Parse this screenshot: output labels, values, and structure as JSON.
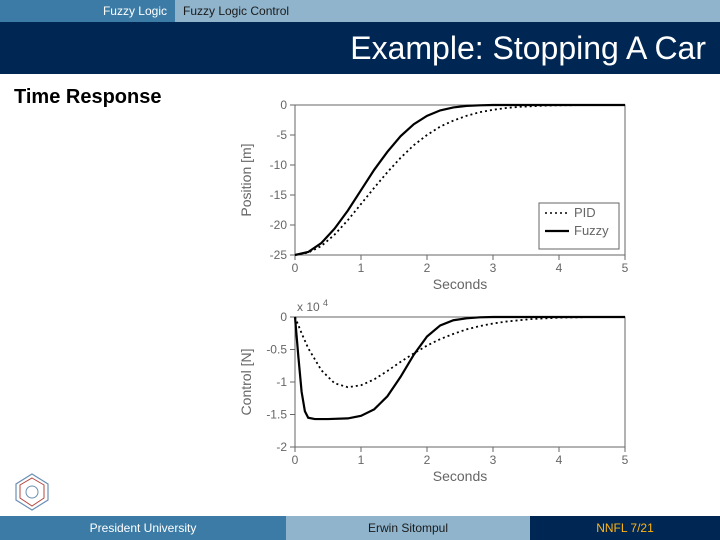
{
  "header": {
    "breadcrumb_left": "Fuzzy Logic",
    "breadcrumb_right": "Fuzzy Logic Control",
    "title": "Example: Stopping A Car"
  },
  "subtitle": "Time Response",
  "footer": {
    "left": "President University",
    "mid": "Erwin Sitompul",
    "right": "NNFL 7/21"
  },
  "colors": {
    "header_left_bg": "#3c7ba5",
    "header_right_bg": "#8fb4cc",
    "title_bg": "#002654",
    "title_fg": "#ffffff",
    "footer_left_bg": "#3c7ba5",
    "footer_mid_bg": "#8fb4cc",
    "footer_right_bg": "#002654",
    "footer_right_fg": "#ffb511",
    "axis_color": "#666666",
    "plot_line": "#000000"
  },
  "chart_top": {
    "type": "line",
    "xlabel": "Seconds",
    "ylabel": "Position [m]",
    "xlim": [
      0,
      5
    ],
    "ylim": [
      -25,
      0
    ],
    "xticks": [
      0,
      1,
      2,
      3,
      4,
      5
    ],
    "yticks": [
      -25,
      -20,
      -15,
      -10,
      -5,
      0
    ],
    "ytick_labels": [
      "-25",
      "-20",
      "-15",
      "-10",
      "-5",
      "0"
    ],
    "series": [
      {
        "name": "PID",
        "style": "dotted",
        "color": "#000000",
        "width": 1.8,
        "data": [
          [
            0,
            -25
          ],
          [
            0.2,
            -24.6
          ],
          [
            0.4,
            -23.5
          ],
          [
            0.6,
            -21.6
          ],
          [
            0.8,
            -19.2
          ],
          [
            1.0,
            -16.5
          ],
          [
            1.2,
            -13.8
          ],
          [
            1.4,
            -11.2
          ],
          [
            1.6,
            -8.8
          ],
          [
            1.8,
            -6.7
          ],
          [
            2.0,
            -5.0
          ],
          [
            2.2,
            -3.6
          ],
          [
            2.4,
            -2.6
          ],
          [
            2.6,
            -1.8
          ],
          [
            2.8,
            -1.2
          ],
          [
            3.0,
            -0.8
          ],
          [
            3.2,
            -0.5
          ],
          [
            3.4,
            -0.3
          ],
          [
            3.6,
            -0.2
          ],
          [
            3.8,
            -0.1
          ],
          [
            4.0,
            -0.05
          ],
          [
            4.5,
            0
          ],
          [
            5.0,
            0
          ]
        ]
      },
      {
        "name": "Fuzzy",
        "style": "solid",
        "color": "#000000",
        "width": 2.2,
        "data": [
          [
            0,
            -25
          ],
          [
            0.2,
            -24.5
          ],
          [
            0.4,
            -23.0
          ],
          [
            0.6,
            -20.6
          ],
          [
            0.8,
            -17.6
          ],
          [
            1.0,
            -14.2
          ],
          [
            1.2,
            -10.8
          ],
          [
            1.4,
            -7.8
          ],
          [
            1.6,
            -5.2
          ],
          [
            1.8,
            -3.2
          ],
          [
            2.0,
            -1.8
          ],
          [
            2.2,
            -0.9
          ],
          [
            2.4,
            -0.4
          ],
          [
            2.6,
            -0.15
          ],
          [
            2.8,
            -0.05
          ],
          [
            3.0,
            0
          ],
          [
            3.5,
            0
          ],
          [
            4.0,
            0
          ],
          [
            5.0,
            0
          ]
        ]
      }
    ],
    "legend": {
      "position": "right",
      "items": [
        {
          "label": "PID",
          "style": "dotted"
        },
        {
          "label": "Fuzzy",
          "style": "solid"
        }
      ]
    }
  },
  "chart_bottom": {
    "type": "line",
    "xlabel": "Seconds",
    "ylabel": "Control [N]",
    "scale_note": "x 10",
    "scale_exp": "4",
    "xlim": [
      0,
      5
    ],
    "ylim": [
      -2,
      0
    ],
    "xticks": [
      0,
      1,
      2,
      3,
      4,
      5
    ],
    "yticks": [
      -2,
      -1.5,
      -1,
      -0.5,
      0
    ],
    "ytick_labels": [
      "-2",
      "-1.5",
      "-1",
      "-0.5",
      "0"
    ],
    "series": [
      {
        "name": "PID",
        "style": "dotted",
        "color": "#000000",
        "width": 1.8,
        "data": [
          [
            0,
            0
          ],
          [
            0.1,
            -0.25
          ],
          [
            0.2,
            -0.48
          ],
          [
            0.4,
            -0.82
          ],
          [
            0.6,
            -1.02
          ],
          [
            0.8,
            -1.08
          ],
          [
            1.0,
            -1.05
          ],
          [
            1.2,
            -0.96
          ],
          [
            1.4,
            -0.83
          ],
          [
            1.6,
            -0.69
          ],
          [
            1.8,
            -0.56
          ],
          [
            2.0,
            -0.44
          ],
          [
            2.2,
            -0.34
          ],
          [
            2.4,
            -0.26
          ],
          [
            2.6,
            -0.19
          ],
          [
            2.8,
            -0.14
          ],
          [
            3.0,
            -0.1
          ],
          [
            3.2,
            -0.07
          ],
          [
            3.4,
            -0.05
          ],
          [
            3.6,
            -0.03
          ],
          [
            3.8,
            -0.02
          ],
          [
            4.0,
            -0.01
          ],
          [
            4.5,
            0
          ],
          [
            5.0,
            0
          ]
        ]
      },
      {
        "name": "Fuzzy",
        "style": "solid",
        "color": "#000000",
        "width": 2.2,
        "data": [
          [
            0,
            0
          ],
          [
            0.05,
            -0.6
          ],
          [
            0.1,
            -1.15
          ],
          [
            0.15,
            -1.45
          ],
          [
            0.2,
            -1.55
          ],
          [
            0.3,
            -1.57
          ],
          [
            0.5,
            -1.57
          ],
          [
            0.8,
            -1.56
          ],
          [
            1.0,
            -1.52
          ],
          [
            1.2,
            -1.42
          ],
          [
            1.4,
            -1.22
          ],
          [
            1.6,
            -0.92
          ],
          [
            1.8,
            -0.58
          ],
          [
            2.0,
            -0.3
          ],
          [
            2.2,
            -0.13
          ],
          [
            2.4,
            -0.05
          ],
          [
            2.6,
            -0.02
          ],
          [
            2.8,
            -0.005
          ],
          [
            3.0,
            0
          ],
          [
            3.5,
            0
          ],
          [
            4.0,
            0
          ],
          [
            5.0,
            0
          ]
        ]
      }
    ]
  }
}
